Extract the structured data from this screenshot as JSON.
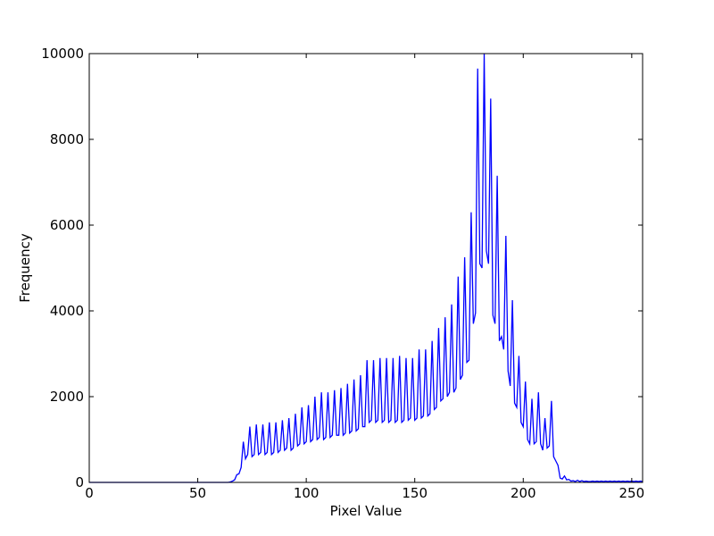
{
  "chart_data": {
    "type": "line",
    "xlabel": "Pixel Value",
    "ylabel": "Frequency",
    "color": "#0000ff",
    "xlim": [
      0,
      255
    ],
    "xticks": [
      0,
      50,
      100,
      150,
      200,
      250
    ],
    "ylim": [
      0,
      10000
    ],
    "yticks": [
      0,
      2000,
      4000,
      6000,
      8000,
      10000
    ],
    "x": [
      0,
      1,
      2,
      3,
      4,
      5,
      6,
      7,
      8,
      9,
      10,
      11,
      12,
      13,
      14,
      15,
      16,
      17,
      18,
      19,
      20,
      21,
      22,
      23,
      24,
      25,
      26,
      27,
      28,
      29,
      30,
      31,
      32,
      33,
      34,
      35,
      36,
      37,
      38,
      39,
      40,
      41,
      42,
      43,
      44,
      45,
      46,
      47,
      48,
      49,
      50,
      51,
      52,
      53,
      54,
      55,
      56,
      57,
      58,
      59,
      60,
      61,
      62,
      63,
      64,
      65,
      66,
      67,
      68,
      69,
      70,
      71,
      72,
      73,
      74,
      75,
      76,
      77,
      78,
      79,
      80,
      81,
      82,
      83,
      84,
      85,
      86,
      87,
      88,
      89,
      90,
      91,
      92,
      93,
      94,
      95,
      96,
      97,
      98,
      99,
      100,
      101,
      102,
      103,
      104,
      105,
      106,
      107,
      108,
      109,
      110,
      111,
      112,
      113,
      114,
      115,
      116,
      117,
      118,
      119,
      120,
      121,
      122,
      123,
      124,
      125,
      126,
      127,
      128,
      129,
      130,
      131,
      132,
      133,
      134,
      135,
      136,
      137,
      138,
      139,
      140,
      141,
      142,
      143,
      144,
      145,
      146,
      147,
      148,
      149,
      150,
      151,
      152,
      153,
      154,
      155,
      156,
      157,
      158,
      159,
      160,
      161,
      162,
      163,
      164,
      165,
      166,
      167,
      168,
      169,
      170,
      171,
      172,
      173,
      174,
      175,
      176,
      177,
      178,
      179,
      180,
      181,
      182,
      183,
      184,
      185,
      186,
      187,
      188,
      189,
      190,
      191,
      192,
      193,
      194,
      195,
      196,
      197,
      198,
      199,
      200,
      201,
      202,
      203,
      204,
      205,
      206,
      207,
      208,
      209,
      210,
      211,
      212,
      213,
      214,
      215,
      216,
      217,
      218,
      219,
      220,
      221,
      222,
      223,
      224,
      225,
      226,
      227,
      228,
      229,
      230,
      231,
      232,
      233,
      234,
      235,
      236,
      237,
      238,
      239,
      240,
      241,
      242,
      243,
      244,
      245,
      246,
      247,
      248,
      249,
      250,
      251,
      252,
      253,
      254,
      255
    ],
    "values": [
      0,
      0,
      0,
      0,
      0,
      0,
      0,
      0,
      0,
      0,
      0,
      0,
      0,
      0,
      0,
      0,
      0,
      0,
      0,
      0,
      0,
      0,
      0,
      0,
      0,
      0,
      0,
      0,
      0,
      0,
      0,
      0,
      0,
      0,
      0,
      0,
      0,
      0,
      0,
      0,
      0,
      0,
      0,
      0,
      0,
      0,
      0,
      0,
      0,
      0,
      0,
      0,
      0,
      0,
      0,
      0,
      0,
      0,
      0,
      0,
      0,
      0,
      0,
      0,
      0,
      10,
      30,
      60,
      180,
      200,
      350,
      950,
      550,
      650,
      1300,
      600,
      650,
      1350,
      650,
      700,
      1350,
      650,
      700,
      1400,
      650,
      700,
      1400,
      700,
      750,
      1450,
      750,
      800,
      1500,
      750,
      800,
      1600,
      850,
      900,
      1750,
      900,
      950,
      1800,
      950,
      1000,
      2000,
      1000,
      1050,
      2100,
      1000,
      1050,
      2100,
      1050,
      1100,
      2150,
      1100,
      1100,
      2200,
      1100,
      1150,
      2300,
      1150,
      1200,
      2400,
      1200,
      1250,
      2500,
      1300,
      1300,
      2850,
      1400,
      1450,
      2850,
      1400,
      1450,
      2900,
      1400,
      1450,
      2900,
      1400,
      1450,
      2900,
      1400,
      1450,
      2950,
      1400,
      1450,
      2900,
      1450,
      1500,
      2900,
      1450,
      1500,
      3100,
      1500,
      1550,
      3100,
      1550,
      1600,
      3300,
      1700,
      1750,
      3600,
      1900,
      1950,
      3850,
      2000,
      2100,
      4150,
      2100,
      2200,
      4800,
      2400,
      2500,
      5250,
      2800,
      2850,
      6300,
      3700,
      3950,
      9650,
      5100,
      5000,
      10000,
      5400,
      5100,
      8950,
      3900,
      3700,
      7150,
      3300,
      3400,
      3100,
      5750,
      2600,
      2250,
      4250,
      1850,
      1750,
      2950,
      1400,
      1300,
      2350,
      1000,
      900,
      1950,
      900,
      950,
      2100,
      900,
      750,
      1500,
      800,
      850,
      1900,
      600,
      500,
      400,
      100,
      80,
      150,
      60,
      70,
      30,
      40,
      20,
      50,
      20,
      40,
      20,
      30,
      20,
      20,
      30,
      20,
      30,
      20,
      30,
      20,
      30,
      20,
      30,
      20,
      30,
      20,
      30,
      20,
      30,
      20,
      30,
      20,
      30,
      20,
      30,
      20,
      30,
      20
    ]
  }
}
